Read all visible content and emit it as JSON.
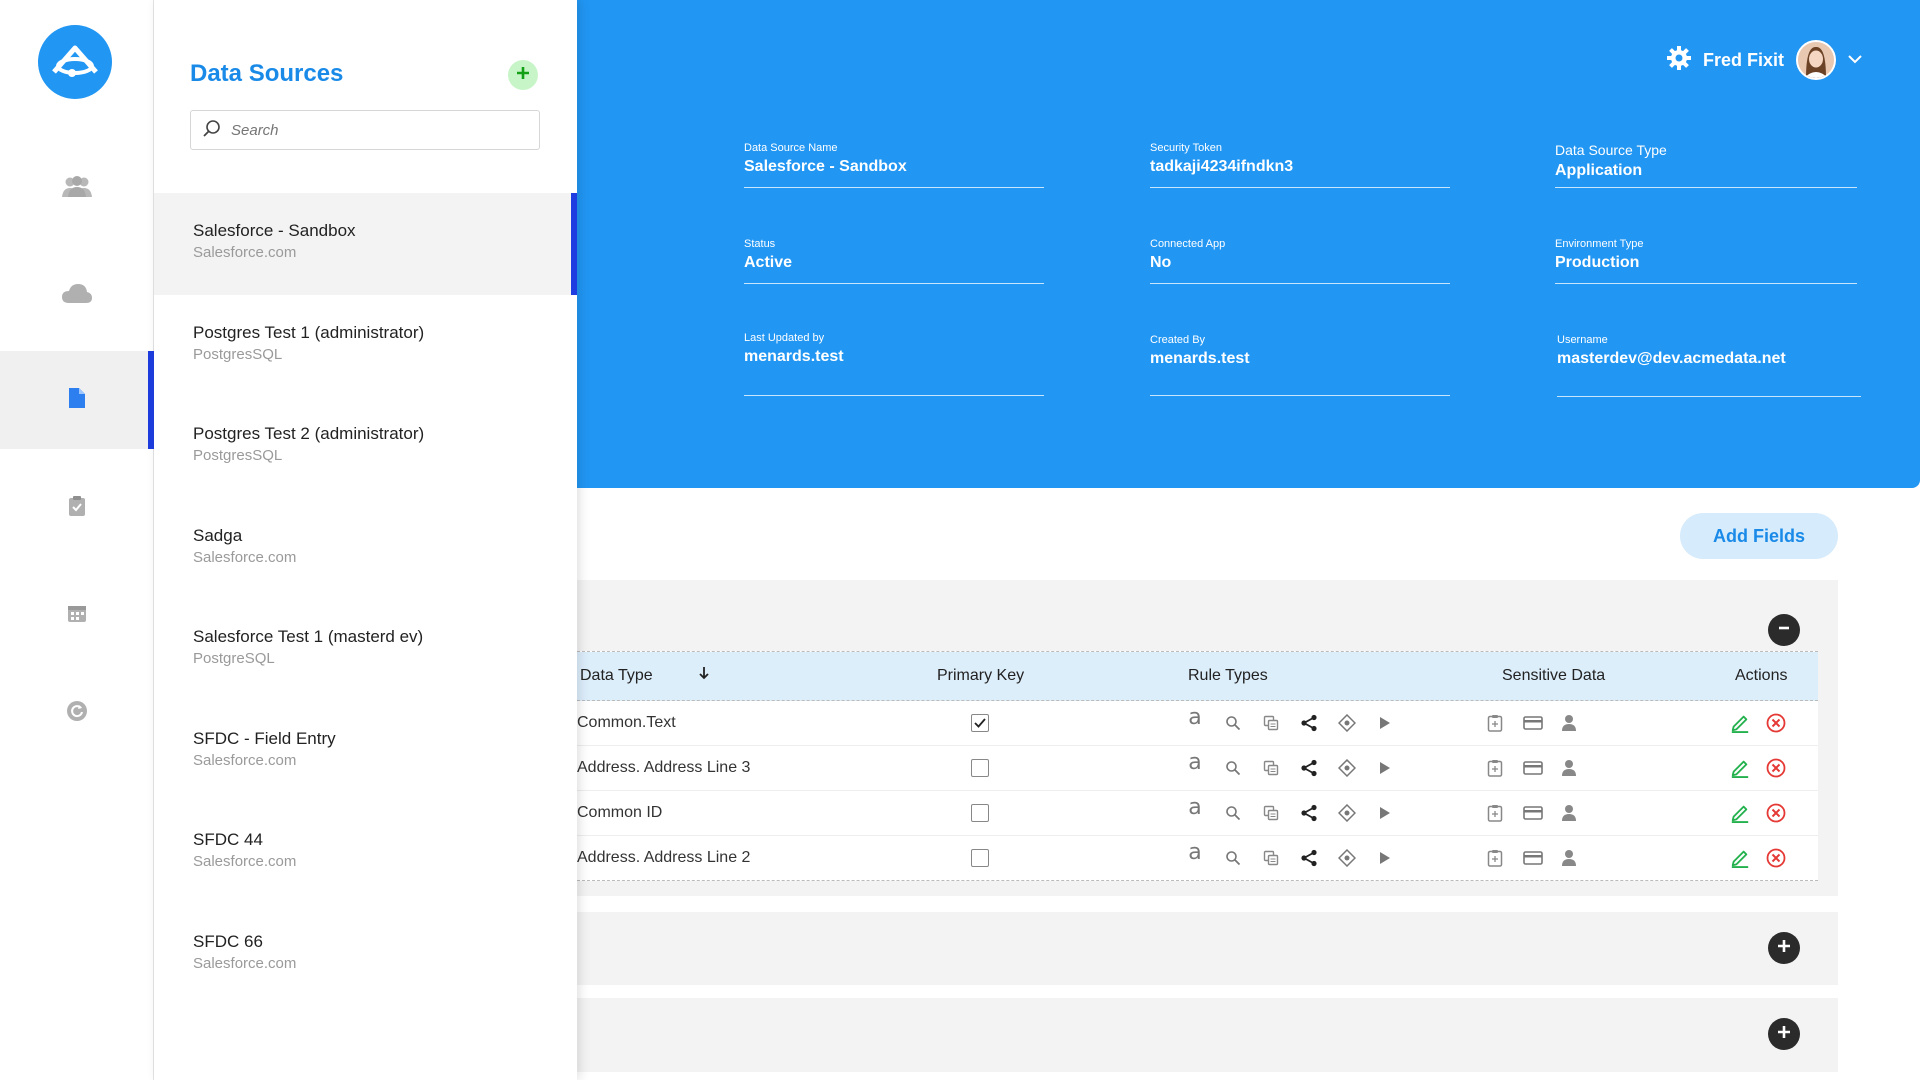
{
  "nav": {
    "logo_icon": "app-logo",
    "items": [
      {
        "icon": "users-icon"
      },
      {
        "icon": "cloud-icon"
      },
      {
        "icon": "document-icon"
      },
      {
        "icon": "clipboard-check-icon"
      },
      {
        "icon": "calendar-icon"
      },
      {
        "icon": "refresh-icon"
      }
    ]
  },
  "panel": {
    "title": "Data Sources",
    "search_placeholder": "Search",
    "items": [
      {
        "name": "Salesforce - Sandbox",
        "type": "Salesforce.com"
      },
      {
        "name": "Postgres Test 1 (administrator)",
        "type": "PostgresSQL"
      },
      {
        "name": "Postgres Test 2 (administrator)",
        "type": "PostgresSQL"
      },
      {
        "name": "Sadga",
        "type": "Salesforce.com"
      },
      {
        "name": "Salesforce Test 1 (masterd ev)",
        "type": "PostgreSQL"
      },
      {
        "name": "SFDC - Field Entry",
        "type": "Salesforce.com"
      },
      {
        "name": "SFDC 44",
        "type": "Salesforce.com"
      },
      {
        "name": "SFDC 66",
        "type": "Salesforce.com"
      }
    ]
  },
  "header": {
    "user_name": "Fred Fixit",
    "fields": [
      {
        "label": "Data Source Name",
        "value": "Salesforce - Sandbox"
      },
      {
        "label": "Security Token",
        "value": "tadkaji4234ifndkn3"
      },
      {
        "label": "Data Source Type",
        "value": "Application"
      },
      {
        "label": "Status",
        "value": "Active"
      },
      {
        "label": "Connected App",
        "value": "No"
      },
      {
        "label": "Environment Type",
        "value": "Production"
      },
      {
        "label": "Last Updated by",
        "value": "menards.test"
      },
      {
        "label": "Created By",
        "value": "menards.test"
      },
      {
        "label": "Username",
        "value": "masterdev@dev.acmedata.net"
      }
    ]
  },
  "fields_section": {
    "add_fields_label": "Add Fields",
    "columns": {
      "data_type": "Data Type",
      "primary_key": "Primary Key",
      "rule_types": "Rule Types",
      "sensitive_data": "Sensitive Data",
      "actions": "Actions"
    },
    "rule_type_icons": [
      "text-rule-icon",
      "search-rule-icon",
      "copy-rule-icon",
      "share-rule-icon",
      "target-rule-icon",
      "play-rule-icon"
    ],
    "rule_text_glyph": "a",
    "sensitive_icons": [
      "clipboard-icon",
      "credit-card-icon",
      "person-icon"
    ],
    "rows": [
      {
        "data_type": "Common.Text",
        "primary_key": true
      },
      {
        "data_type": "Address. Address Line 3",
        "primary_key": false
      },
      {
        "data_type": "Common ID",
        "primary_key": false
      },
      {
        "data_type": "Address. Address Line 2",
        "primary_key": false
      }
    ]
  },
  "colors": {
    "primary_blue": "#2196f3",
    "title_blue": "#1a8ae8",
    "active_indicator": "#1e3de0",
    "edit_green": "#22b14c",
    "delete_red": "#e53935"
  }
}
